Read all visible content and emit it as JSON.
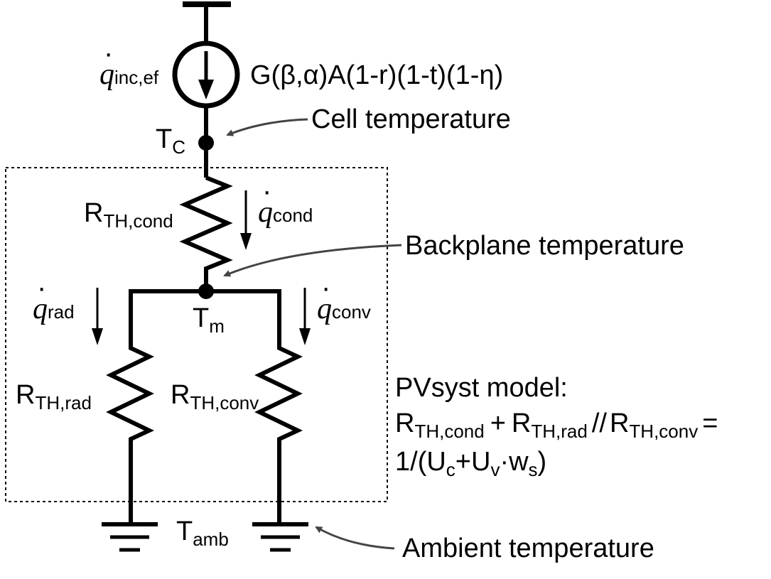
{
  "source": {
    "flux_symbol": "q",
    "flux_sub": "inc,ef",
    "expression": "G(β,α)A(1-r)(1-t)(1-η)"
  },
  "nodes": {
    "cell": {
      "symbol": "T",
      "sub": "C"
    },
    "backplane": {
      "symbol": "T",
      "sub": "m"
    },
    "ambient": {
      "symbol": "T",
      "sub": "amb"
    }
  },
  "resistors": {
    "cond": {
      "symbol": "R",
      "sub": "TH,cond"
    },
    "rad": {
      "symbol": "R",
      "sub": "TH,rad"
    },
    "conv": {
      "symbol": "R",
      "sub": "TH,conv"
    }
  },
  "fluxes": {
    "cond": {
      "symbol": "q",
      "sub": "cond"
    },
    "rad": {
      "symbol": "q",
      "sub": "rad"
    },
    "conv": {
      "symbol": "q",
      "sub": "conv"
    }
  },
  "callouts": {
    "cell": "Cell temperature",
    "backplane": "Backplane temperature",
    "ambient": "Ambient temperature"
  },
  "model": {
    "title": "PVsyst model:",
    "r1": "R",
    "r1_sub": "TH,cond",
    "plus": "+",
    "r2": "R",
    "r2_sub": "TH,rad",
    "par": "//",
    "r3": "R",
    "r3_sub": "TH,conv",
    "eq": "=",
    "frac_pre": "1/(U",
    "uc_sub": "c",
    "mid": "+U",
    "uv_sub": "v",
    "dot": "·w",
    "ws_sub": "s",
    "close": ")"
  }
}
